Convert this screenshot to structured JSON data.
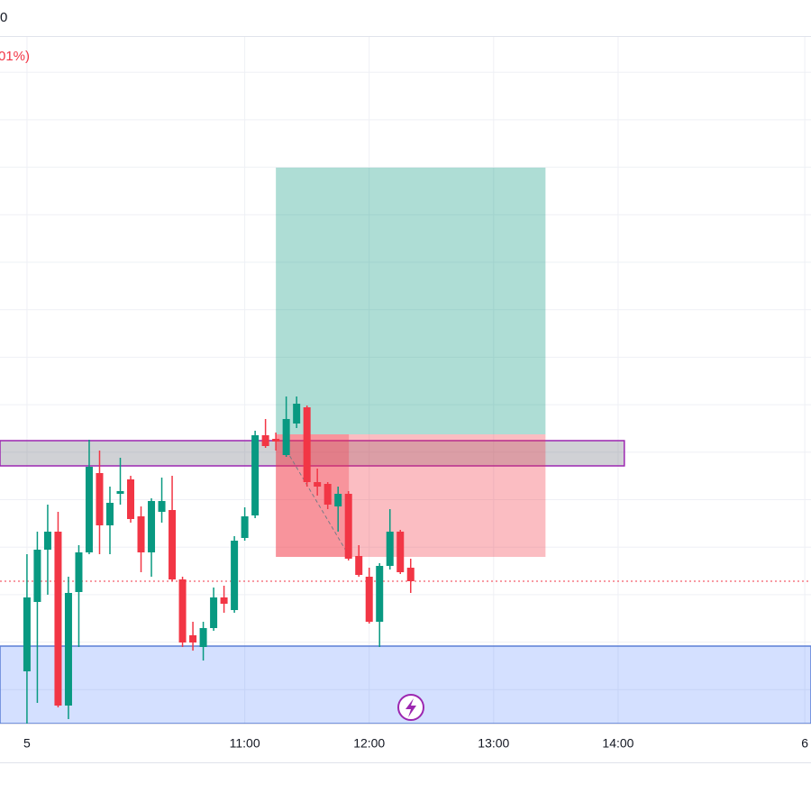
{
  "chart_data": {
    "type": "candlestick",
    "title": "0",
    "subtitle": "01%)",
    "x": [
      "09:15",
      "09:20",
      "09:25",
      "09:30",
      "09:35",
      "09:40",
      "09:45",
      "09:50",
      "09:55",
      "10:00",
      "10:05",
      "10:10",
      "10:15",
      "10:20",
      "10:25",
      "10:30",
      "10:35",
      "10:40",
      "10:45",
      "10:50",
      "10:55",
      "11:00",
      "11:05",
      "11:10",
      "11:15",
      "11:20",
      "11:25",
      "11:30",
      "11:35",
      "11:40",
      "11:45",
      "11:50",
      "11:55",
      "12:00",
      "12:05",
      "12:10",
      "12:15",
      "12:20"
    ],
    "open": [
      58,
      135,
      193,
      213,
      20,
      146,
      190,
      278,
      220,
      255,
      271,
      230,
      190,
      235,
      237,
      160,
      98,
      85,
      106,
      140,
      126,
      206,
      231,
      320,
      316,
      298,
      333,
      351,
      268,
      266,
      241,
      255,
      186,
      163,
      113,
      175,
      213,
      173
    ],
    "high": [
      188,
      213,
      243,
      235,
      163,
      198,
      315,
      303,
      263,
      295,
      275,
      241,
      250,
      273,
      275,
      163,
      113,
      113,
      151,
      153,
      208,
      240,
      325,
      338,
      323,
      363,
      363,
      353,
      283,
      268,
      263,
      258,
      198,
      173,
      178,
      238,
      215,
      183
    ],
    "low": [
      0,
      23,
      143,
      18,
      5,
      85,
      188,
      188,
      188,
      243,
      223,
      168,
      163,
      223,
      158,
      85,
      81,
      70,
      103,
      123,
      123,
      203,
      228,
      306,
      303,
      296,
      328,
      263,
      253,
      238,
      213,
      181,
      163,
      111,
      85,
      171,
      166,
      145
    ],
    "close": [
      140,
      193,
      213,
      20,
      145,
      190,
      285,
      220,
      245,
      258,
      227,
      190,
      247,
      247,
      160,
      90,
      90,
      106,
      140,
      133,
      203,
      230,
      320,
      308,
      313,
      338,
      355,
      268,
      263,
      243,
      255,
      183,
      165,
      113,
      175,
      213,
      168,
      158
    ],
    "up_color": "#089981",
    "down_color": "#f23645",
    "xlim": [
      "09:02",
      "15:33"
    ],
    "ylim": [
      0,
      800
    ],
    "xticks": [
      {
        "value": "09:15",
        "label": "5"
      },
      "11:00",
      "12:00",
      "13:00",
      "14:00",
      {
        "value": "15:30",
        "label": "6"
      }
    ],
    "grid": true,
    "position": {
      "start": "11:15",
      "end": "13:25",
      "entry": 321,
      "target": 617,
      "stop": 185
    },
    "zones": [
      {
        "start": "09:02",
        "end": "14:03",
        "top": 314,
        "bottom": 286,
        "fill": "rgba(120,123,134,0.35)",
        "border": "#9c27b0"
      },
      {
        "start": "09:02",
        "end": "15:33",
        "top": 86,
        "bottom": 0,
        "fill": "rgba(41,98,255,0.2)",
        "border": "#5b7fd6"
      }
    ],
    "price_line": 158
  }
}
